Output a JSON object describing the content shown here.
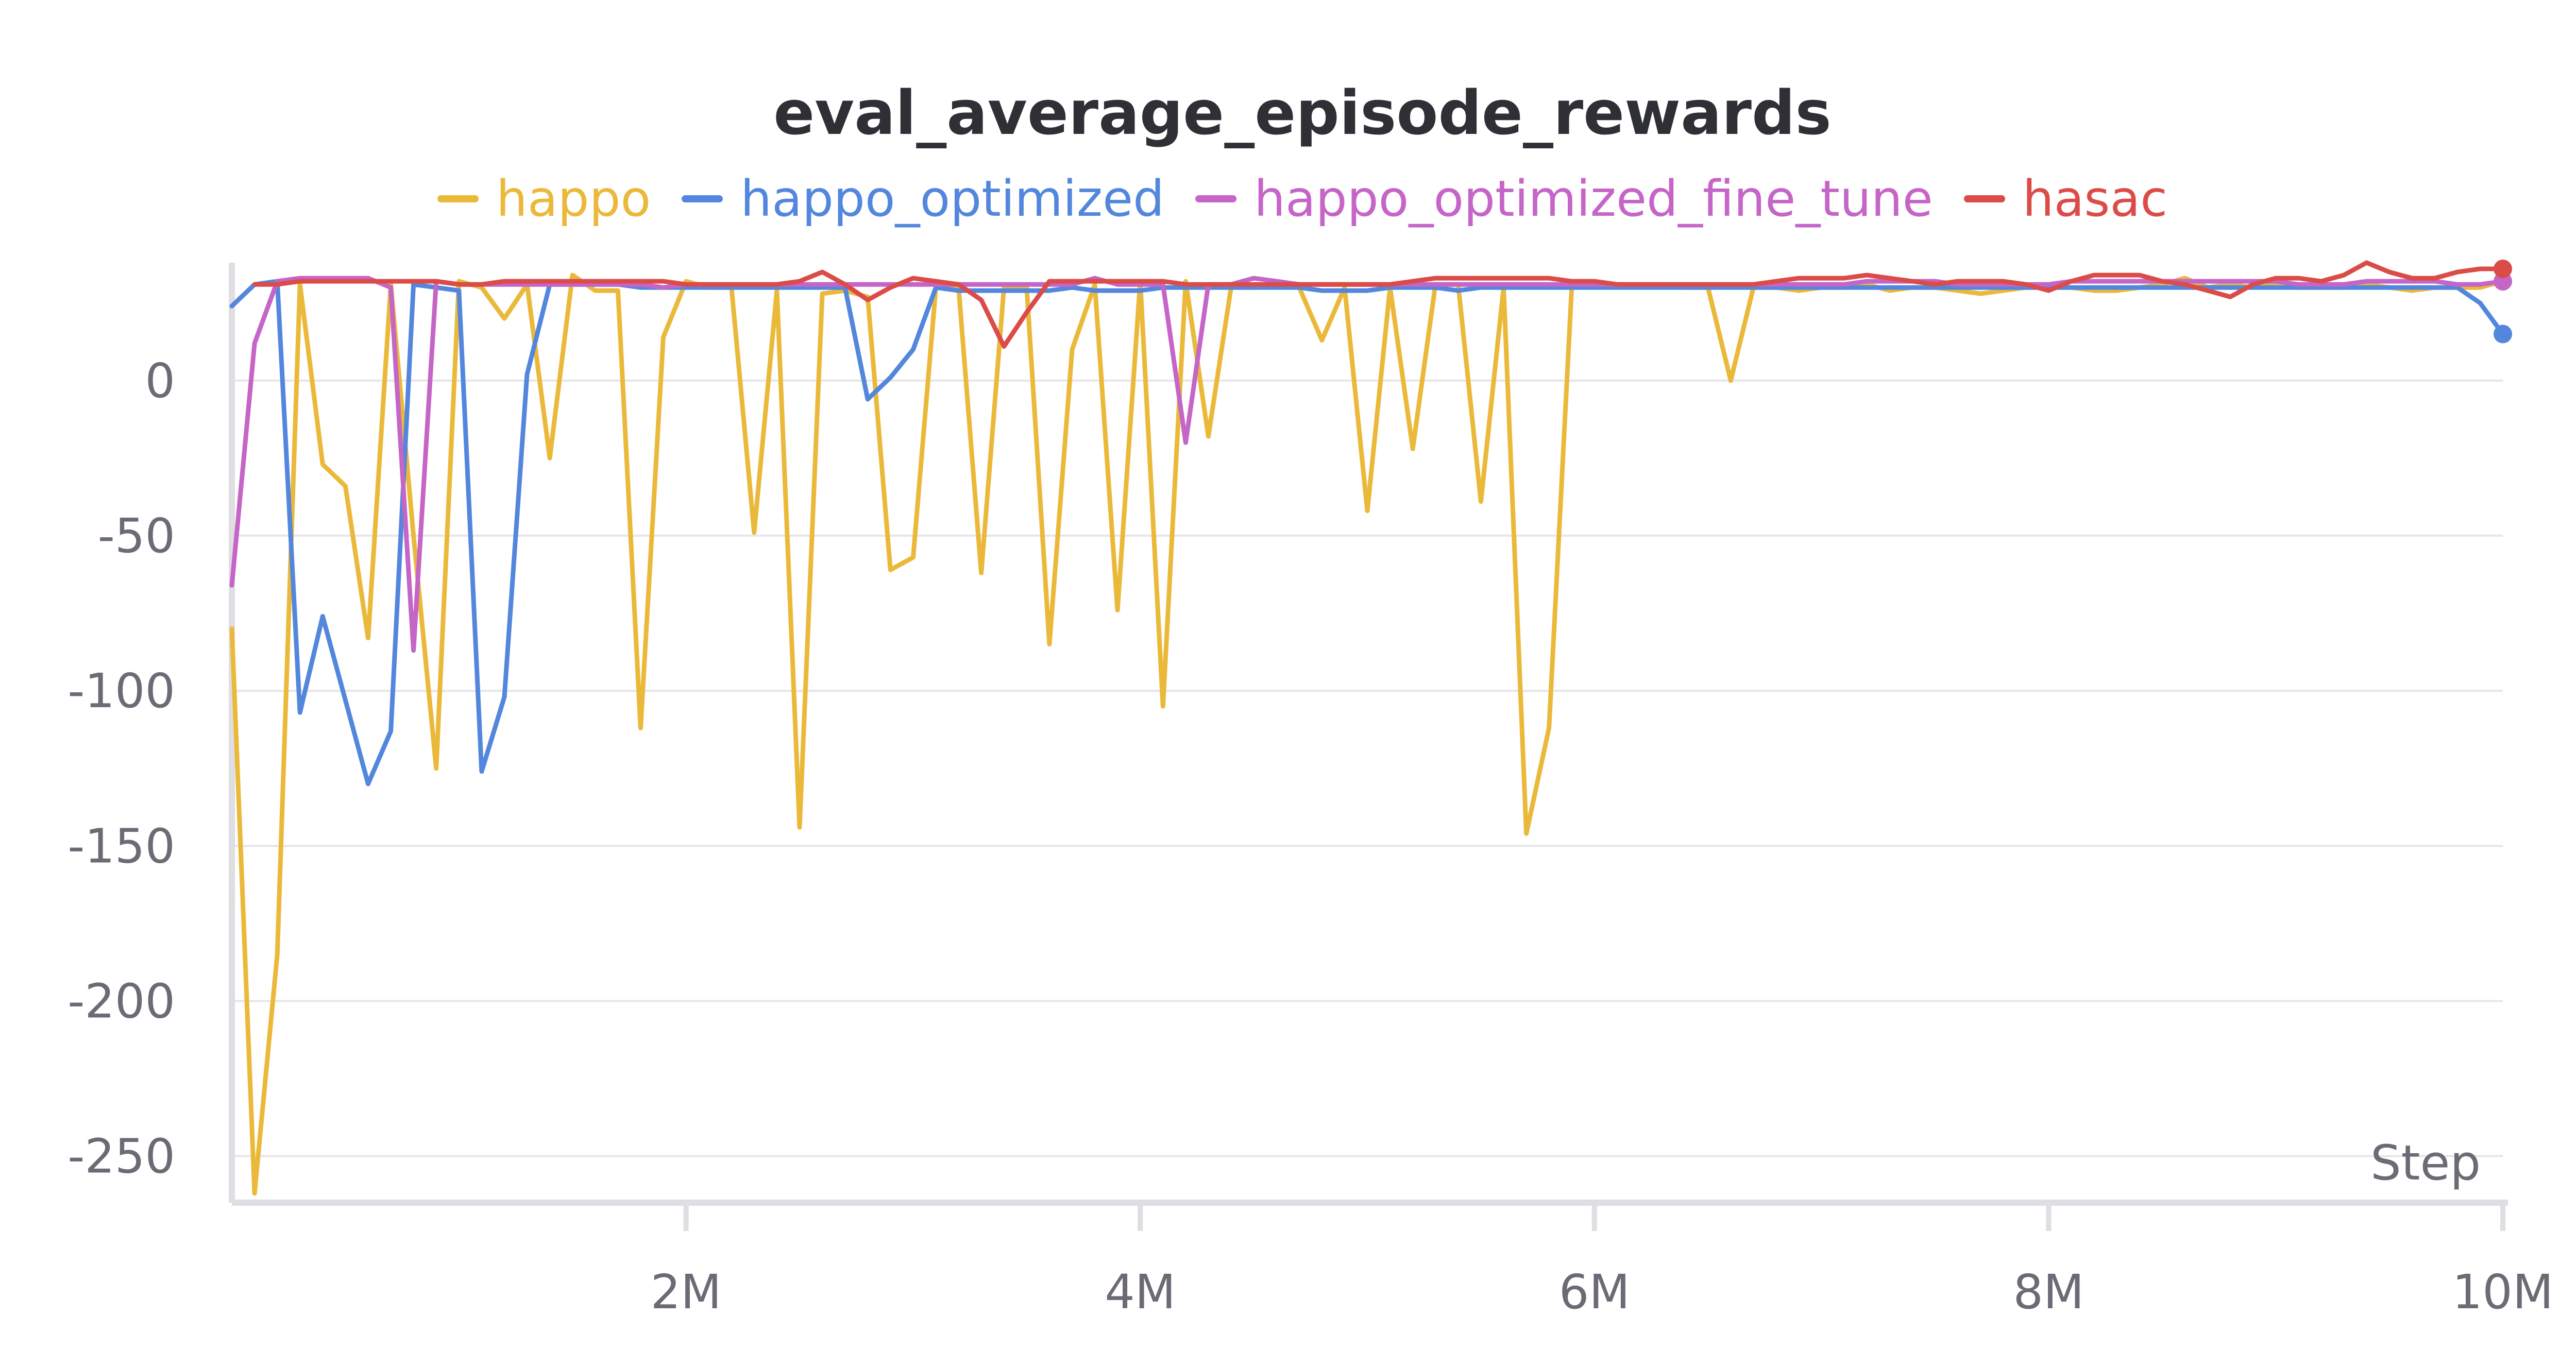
{
  "chart_data": {
    "type": "line",
    "title": "eval_average_episode_rewards",
    "xlabel": "Step",
    "ylabel": "",
    "xlim": [
      0,
      10000000
    ],
    "ylim": [
      -265,
      38
    ],
    "y_ticks": [
      0,
      -50,
      -100,
      -150,
      -200,
      -250
    ],
    "y_tick_labels": [
      "0",
      "-50",
      "-100",
      "-150",
      "-200",
      "-250"
    ],
    "x_ticks": [
      2000000,
      4000000,
      6000000,
      8000000,
      10000000
    ],
    "x_tick_labels": [
      "2M",
      "4M",
      "6M",
      "8M",
      "10M"
    ],
    "grid": true,
    "legend_position": "top-center",
    "x": [
      0,
      100000,
      200000,
      300000,
      400000,
      500000,
      600000,
      700000,
      800000,
      900000,
      1000000,
      1100000,
      1200000,
      1300000,
      1400000,
      1500000,
      1600000,
      1700000,
      1800000,
      1900000,
      2000000,
      2100000,
      2200000,
      2300000,
      2400000,
      2500000,
      2600000,
      2700000,
      2800000,
      2900000,
      3000000,
      3100000,
      3200000,
      3300000,
      3400000,
      3500000,
      3600000,
      3700000,
      3800000,
      3900000,
      4000000,
      4100000,
      4200000,
      4300000,
      4400000,
      4500000,
      4600000,
      4700000,
      4800000,
      4900000,
      5000000,
      5100000,
      5200000,
      5300000,
      5400000,
      5500000,
      5600000,
      5700000,
      5800000,
      5900000,
      6000000,
      6100000,
      6200000,
      6300000,
      6400000,
      6500000,
      6600000,
      6700000,
      6800000,
      6900000,
      7000000,
      7100000,
      7200000,
      7300000,
      7400000,
      7500000,
      7600000,
      7700000,
      7800000,
      7900000,
      8000000,
      8100000,
      8200000,
      8300000,
      8400000,
      8500000,
      8600000,
      8700000,
      8800000,
      8900000,
      9000000,
      9100000,
      9200000,
      9300000,
      9400000,
      9500000,
      9600000,
      9700000,
      9800000,
      9900000,
      10000000
    ],
    "series": [
      {
        "name": "happo",
        "color": "#ebb93a",
        "values": [
          -80,
          -262,
          -185,
          31,
          -27,
          -34,
          -83,
          31,
          -50,
          -125,
          32,
          30,
          20,
          31,
          -25,
          34,
          29,
          29,
          -112,
          14,
          32,
          30,
          30,
          -49,
          29,
          -144,
          28,
          29,
          27,
          -61,
          -57,
          30,
          30,
          -62,
          30,
          30,
          -85,
          10,
          31,
          -74,
          32,
          -105,
          32,
          -18,
          30,
          30,
          31,
          30,
          13,
          30,
          -42,
          30,
          -22,
          31,
          31,
          -39,
          30,
          -146,
          -112,
          30,
          31,
          31,
          31,
          31,
          30,
          30,
          0,
          30,
          30,
          29,
          30,
          30,
          31,
          29,
          30,
          30,
          29,
          28,
          29,
          30,
          30,
          30,
          29,
          29,
          30,
          31,
          33,
          30,
          31,
          30,
          31,
          30,
          30,
          30,
          31,
          30,
          29,
          30,
          30,
          30,
          32
        ]
      },
      {
        "name": "happo_optimized",
        "color": "#5387dd",
        "values": [
          24,
          31,
          32,
          -107,
          -76,
          -103,
          -130,
          -113,
          31,
          30,
          29,
          -126,
          -102,
          2,
          31,
          31,
          31,
          31,
          30,
          30,
          30,
          30,
          30,
          30,
          30,
          30,
          30,
          30,
          -6,
          1,
          10,
          30,
          29,
          29,
          29,
          29,
          29,
          30,
          29,
          29,
          29,
          30,
          30,
          30,
          30,
          30,
          30,
          30,
          29,
          29,
          29,
          30,
          30,
          30,
          29,
          30,
          30,
          30,
          30,
          30,
          30,
          30,
          30,
          30,
          30,
          30,
          30,
          30,
          30,
          30,
          30,
          30,
          30,
          30,
          30,
          30,
          30,
          30,
          30,
          30,
          30,
          30,
          30,
          30,
          30,
          30,
          30,
          30,
          30,
          30,
          30,
          30,
          30,
          30,
          30,
          30,
          30,
          30,
          30,
          25,
          15
        ]
      },
      {
        "name": "happo_optimized_fine_tune",
        "color": "#c565c7",
        "values": [
          -66,
          12,
          32,
          33,
          33,
          33,
          33,
          30,
          -87,
          32,
          31,
          31,
          31,
          31,
          31,
          31,
          31,
          31,
          31,
          30,
          31,
          31,
          31,
          31,
          31,
          31,
          31,
          31,
          31,
          31,
          31,
          31,
          31,
          31,
          31,
          31,
          31,
          31,
          33,
          31,
          31,
          31,
          -20,
          31,
          31,
          33,
          32,
          31,
          31,
          31,
          31,
          31,
          31,
          31,
          31,
          31,
          31,
          31,
          31,
          31,
          31,
          31,
          31,
          31,
          31,
          31,
          31,
          31,
          31,
          31,
          31,
          31,
          32,
          32,
          32,
          32,
          31,
          31,
          31,
          31,
          31,
          32,
          32,
          32,
          32,
          32,
          32,
          32,
          32,
          32,
          32,
          31,
          31,
          31,
          32,
          32,
          32,
          32,
          31,
          31,
          32
        ]
      },
      {
        "name": "hasac",
        "color": "#db4c48",
        "values": [
          null,
          31,
          31,
          32,
          32,
          32,
          32,
          32,
          32,
          32,
          31,
          31,
          32,
          32,
          32,
          32,
          32,
          32,
          32,
          32,
          31,
          31,
          31,
          31,
          31,
          32,
          35,
          31,
          26,
          30,
          33,
          32,
          31,
          26,
          11,
          22,
          32,
          32,
          32,
          32,
          32,
          32,
          31,
          31,
          31,
          31,
          31,
          31,
          31,
          31,
          31,
          31,
          32,
          33,
          33,
          33,
          33,
          33,
          33,
          32,
          32,
          31,
          31,
          31,
          31,
          31,
          31,
          31,
          32,
          33,
          33,
          33,
          34,
          33,
          32,
          31,
          32,
          32,
          32,
          31,
          29,
          32,
          34,
          34,
          34,
          32,
          31,
          29,
          27,
          31,
          33,
          33,
          32,
          34,
          38,
          35,
          33,
          33,
          35,
          36,
          36
        ]
      }
    ]
  }
}
